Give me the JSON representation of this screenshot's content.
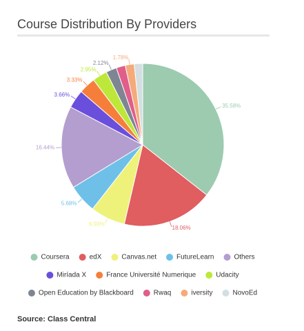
{
  "chart_data": {
    "type": "pie",
    "title": "Course Distribution By Providers",
    "categories": [
      "Coursera",
      "edX",
      "Canvas.net",
      "FutureLearn",
      "Others",
      "Miríada X",
      "France Université Numerique",
      "Udacity",
      "Open Education by Blackboard",
      "Rwaq",
      "iversity",
      "NovoEd"
    ],
    "values": [
      35.58,
      18.06,
      6.93,
      5.68,
      16.44,
      3.66,
      3.33,
      2.95,
      2.12,
      1.8,
      1.78,
      1.67
    ],
    "value_labels": [
      "35.58%",
      "18.06%",
      "6.93%",
      "5.68%",
      "16.44%",
      "3.66%",
      "3.33%",
      "2.95%",
      "2.12%",
      null,
      "1.78%",
      null
    ],
    "colors": [
      "#9ccbb0",
      "#e05d60",
      "#eef27a",
      "#6ec0e8",
      "#b39ecf",
      "#6a4fdc",
      "#f57f3a",
      "#bde83a",
      "#7e8593",
      "#e05f8a",
      "#f5aa7a",
      "#d3dfe0"
    ],
    "legend": "bottom"
  },
  "source": "Source: Class Central"
}
